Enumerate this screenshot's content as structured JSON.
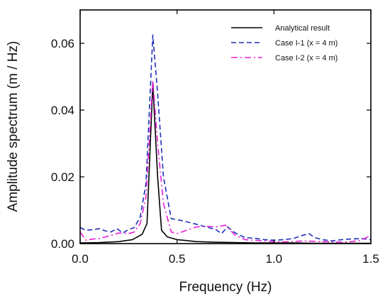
{
  "chart_data": {
    "type": "line",
    "xlabel": "Frequency (Hz)",
    "ylabel": "Amplitude spectrum (m / Hz)",
    "xlim": [
      0,
      1.5
    ],
    "ylim": [
      0,
      0.07
    ],
    "x_ticks": [
      "0.0",
      "0.5",
      "1.0",
      "1.5"
    ],
    "x_tick_values": [
      0,
      0.5,
      1.0,
      1.5
    ],
    "y_ticks": [
      "0.00",
      "0.02",
      "0.04",
      "0.06"
    ],
    "y_tick_values": [
      0,
      0.02,
      0.04,
      0.06
    ],
    "grid": false,
    "legend_position": "top-right",
    "series": [
      {
        "name": "Analytical result",
        "color": "#000000",
        "dash": "solid",
        "x": [
          0.0,
          0.1,
          0.2,
          0.27,
          0.32,
          0.345,
          0.375,
          0.4,
          0.42,
          0.45,
          0.5,
          0.6,
          0.7,
          0.8,
          0.9,
          1.0,
          1.1,
          1.2,
          1.3,
          1.4,
          1.5
        ],
        "y": [
          0.0002,
          0.0003,
          0.0006,
          0.0012,
          0.0028,
          0.006,
          0.048,
          0.02,
          0.004,
          0.002,
          0.0012,
          0.0006,
          0.0004,
          0.0003,
          0.0002,
          0.0002,
          0.0002,
          0.0001,
          0.0001,
          0.0001,
          0.0001
        ]
      },
      {
        "name": "Case I-1 (x = 4 m)",
        "color": "#1f2fb8",
        "dash": "dashed",
        "x": [
          0.0,
          0.03,
          0.07,
          0.1,
          0.13,
          0.16,
          0.19,
          0.22,
          0.25,
          0.28,
          0.31,
          0.34,
          0.375,
          0.4,
          0.43,
          0.47,
          0.5,
          0.55,
          0.6,
          0.65,
          0.7,
          0.73,
          0.76,
          0.8,
          0.85,
          0.9,
          0.95,
          1.0,
          1.05,
          1.1,
          1.15,
          1.18,
          1.21,
          1.25,
          1.3,
          1.35,
          1.4,
          1.45,
          1.5
        ],
        "y": [
          0.0048,
          0.004,
          0.0042,
          0.0045,
          0.0038,
          0.0035,
          0.0045,
          0.0032,
          0.0042,
          0.0048,
          0.008,
          0.018,
          0.0625,
          0.045,
          0.02,
          0.0075,
          0.0072,
          0.0065,
          0.0058,
          0.005,
          0.0042,
          0.003,
          0.005,
          0.0032,
          0.0018,
          0.0016,
          0.0012,
          0.001,
          0.0012,
          0.0015,
          0.0025,
          0.003,
          0.0018,
          0.0012,
          0.0008,
          0.0012,
          0.0014,
          0.0015,
          0.0012
        ]
      },
      {
        "name": "Case I-2 (x = 4 m)",
        "color": "#e81ed8",
        "dash": "dashdot",
        "x": [
          0.0,
          0.03,
          0.07,
          0.1,
          0.13,
          0.16,
          0.2,
          0.25,
          0.28,
          0.31,
          0.34,
          0.375,
          0.4,
          0.43,
          0.47,
          0.5,
          0.55,
          0.6,
          0.65,
          0.7,
          0.75,
          0.8,
          0.85,
          0.9,
          0.95,
          1.0,
          1.05,
          1.1,
          1.15,
          1.2,
          1.25,
          1.3,
          1.35,
          1.4,
          1.45,
          1.5
        ],
        "y": [
          0.0035,
          0.001,
          0.0014,
          0.0015,
          0.002,
          0.0025,
          0.0032,
          0.003,
          0.0035,
          0.006,
          0.014,
          0.049,
          0.03,
          0.012,
          0.0035,
          0.003,
          0.004,
          0.005,
          0.0052,
          0.005,
          0.0055,
          0.0025,
          0.0012,
          0.001,
          0.0008,
          0.0006,
          0.0005,
          0.0006,
          0.0008,
          0.0007,
          0.0006,
          0.0005,
          0.0004,
          0.0006,
          0.001,
          0.0025
        ]
      }
    ]
  }
}
